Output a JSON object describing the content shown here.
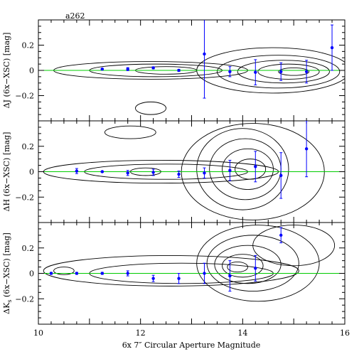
{
  "chart_data": {
    "type": "scatter",
    "label": "a262",
    "xlabel": "6x 7″ Circular Aperture Magnitude",
    "xlim": [
      10,
      16
    ],
    "xticks": [
      10,
      12,
      14,
      16
    ],
    "zero_line_color": "#00cc00",
    "point_color": "#0000ff",
    "contour_color": "#000000",
    "panels": [
      {
        "name": "J",
        "ylabel": "ΔJ (6x−XSC) [mag]",
        "ylim": [
          -0.4,
          0.4
        ],
        "yticks": [
          -0.2,
          0,
          0.2
        ],
        "ytick_labels": [
          "−0.2",
          "0",
          "0.2"
        ],
        "points": [
          {
            "x": 11.25,
            "y": 0.01,
            "err": 0.005
          },
          {
            "x": 11.75,
            "y": 0.01,
            "err": 0.012
          },
          {
            "x": 12.25,
            "y": 0.02,
            "err": 0.008
          },
          {
            "x": 12.75,
            "y": 0.0,
            "err": 0.008
          },
          {
            "x": 13.25,
            "y": 0.13,
            "err": 0.35
          },
          {
            "x": 13.75,
            "y": -0.01,
            "err": 0.04
          },
          {
            "x": 14.25,
            "y": -0.015,
            "err": 0.1
          },
          {
            "x": 14.75,
            "y": -0.01,
            "err": 0.07
          },
          {
            "x": 15.25,
            "y": -0.01,
            "err": 0.09
          },
          {
            "x": 15.75,
            "y": 0.18,
            "err": 0.18
          }
        ]
      },
      {
        "name": "H",
        "ylabel": "ΔH (6x−XSC) [mag]",
        "ylim": [
          -0.4,
          0.4
        ],
        "yticks": [
          -0.2,
          0,
          0.2
        ],
        "ytick_labels": [
          "−0.2",
          "0",
          "0.2"
        ],
        "points": [
          {
            "x": 10.75,
            "y": 0.005,
            "err": 0.02
          },
          {
            "x": 11.25,
            "y": 0.0,
            "err": 0.006
          },
          {
            "x": 11.75,
            "y": -0.01,
            "err": 0.02
          },
          {
            "x": 12.25,
            "y": -0.005,
            "err": 0.025
          },
          {
            "x": 12.75,
            "y": -0.02,
            "err": 0.025
          },
          {
            "x": 13.25,
            "y": -0.01,
            "err": 0.04
          },
          {
            "x": 13.75,
            "y": 0.01,
            "err": 0.08
          },
          {
            "x": 14.25,
            "y": 0.04,
            "err": 0.12
          },
          {
            "x": 14.75,
            "y": -0.03,
            "err": 0.18
          },
          {
            "x": 15.25,
            "y": 0.18,
            "err": 0.22
          }
        ]
      },
      {
        "name": "Ks",
        "ylabel": "ΔK",
        "ylabel_sub": "s",
        "ylabel_rest": " (6x−XSC) [mag]",
        "ylim": [
          -0.4,
          0.4
        ],
        "yticks": [
          -0.2,
          0,
          0.2
        ],
        "ytick_labels": [
          "−0.2",
          "0",
          "0.2"
        ],
        "points": [
          {
            "x": 10.25,
            "y": 0.0,
            "err": 0.008
          },
          {
            "x": 10.75,
            "y": 0.0,
            "err": 0.008
          },
          {
            "x": 11.25,
            "y": 0.0,
            "err": 0.008
          },
          {
            "x": 11.75,
            "y": 0.0,
            "err": 0.02
          },
          {
            "x": 12.25,
            "y": -0.04,
            "err": 0.025
          },
          {
            "x": 12.75,
            "y": -0.04,
            "err": 0.04
          },
          {
            "x": 13.25,
            "y": 0.0,
            "err": 0.08
          },
          {
            "x": 13.75,
            "y": -0.02,
            "err": 0.12
          },
          {
            "x": 14.25,
            "y": 0.04,
            "err": 0.1
          },
          {
            "x": 14.75,
            "y": 0.3,
            "err": 0.06
          }
        ]
      }
    ]
  }
}
